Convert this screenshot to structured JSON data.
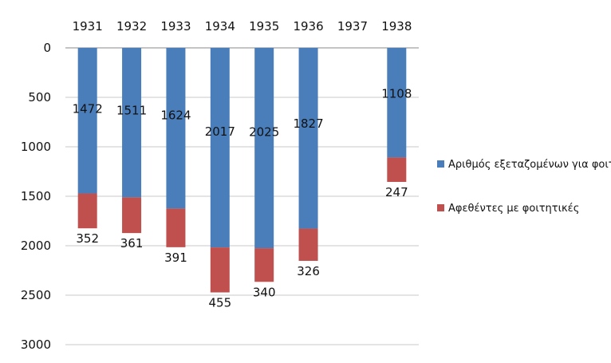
{
  "chart_data": {
    "type": "bar",
    "stacked": true,
    "orientation": "vertical, y-axis inverted (0 at top)",
    "categories": [
      "1931",
      "1932",
      "1933",
      "1934",
      "1935",
      "1936",
      "1937",
      "1938"
    ],
    "series": [
      {
        "name": "Αριθμός εξεταζομένων για φοιτητικές",
        "color": "#4a7ebb",
        "values": [
          1472,
          1511,
          1624,
          2017,
          2025,
          1827,
          0,
          1108
        ],
        "labels": [
          "1472",
          "1511",
          "1624",
          "2017",
          "2025",
          "1827",
          null,
          "1108"
        ]
      },
      {
        "name": "Αφεθέντες με φοιτητικές",
        "color": "#c0504d",
        "values": [
          352,
          361,
          391,
          455,
          340,
          326,
          0,
          247
        ],
        "labels": [
          "352",
          "361",
          "391",
          "455",
          "340",
          "326",
          null,
          "247"
        ]
      }
    ],
    "yticks": [
      "0",
      "500",
      "1000",
      "1500",
      "2000",
      "2500",
      "3000"
    ],
    "ylim": [
      0,
      3000
    ],
    "grid": true,
    "legend_position": "right"
  }
}
